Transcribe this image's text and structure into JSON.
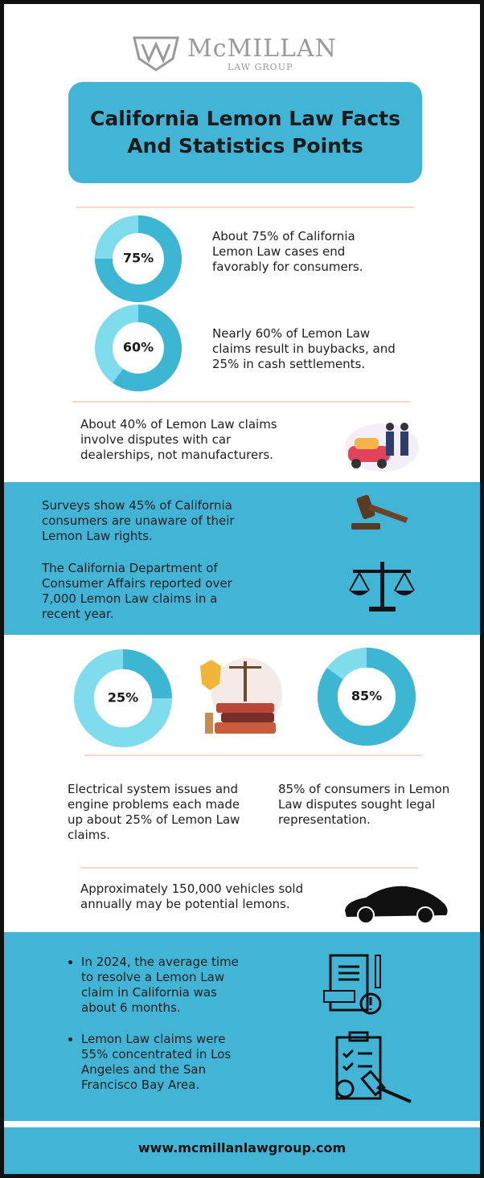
{
  "header": {
    "logo_name": "McMILLAN",
    "logo_subtitle": "LAW GROUP",
    "title": "California Lemon Law Facts And Statistics Points"
  },
  "stats": [
    {
      "value": 75,
      "label": "75%",
      "text": "About 75% of California Lemon Law cases end favorably for consumers."
    },
    {
      "value": 60,
      "label": "60%",
      "text": "Nearly 60% of Lemon Law claims result in buybacks, and 25% in cash settlements."
    }
  ],
  "dealership_fact": "About 40% of Lemon Law claims involve disputes with car dealerships, not manufacturers.",
  "band_facts": [
    "Surveys show 45% of California consumers are unaware of their Lemon Law rights.",
    "The California Department of Consumer Affairs reported over 7,000 Lemon Law claims in a recent year."
  ],
  "stats_2": [
    {
      "value": 25,
      "label": "25%",
      "text": "Electrical system issues and engine problems each made up about 25% of Lemon Law claims."
    },
    {
      "value": 85,
      "label": "85%",
      "text": "85% of consumers in Lemon Law disputes sought legal representation."
    }
  ],
  "vehicles_fact": "Approximately 150,000 vehicles sold annually may be potential lemons.",
  "bullets": [
    "In 2024, the average time to resolve a Lemon Law claim in California was about 6 months.",
    "Lemon Law claims were 55% concentrated in Los Angeles and the San Francisco Bay Area."
  ],
  "footer": {
    "url": "www.mcmillanlawgroup.com"
  }
}
